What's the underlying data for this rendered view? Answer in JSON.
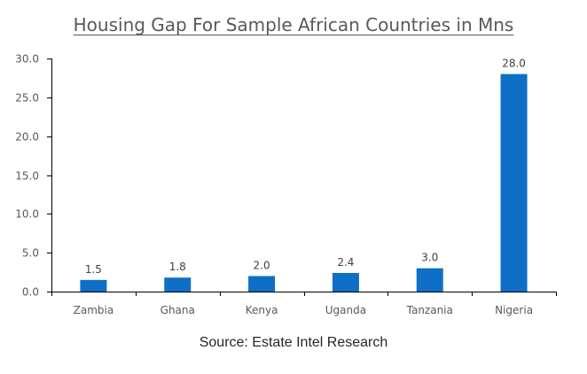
{
  "title": "Housing Gap For Sample African Countries in Mns",
  "source": "Source: Estate Intel Research",
  "colors": {
    "bar": "#0f6fc6",
    "axis": "#000000",
    "text": "#595959"
  },
  "chart_data": {
    "type": "bar",
    "title": "Housing Gap For Sample African Countries in Mns",
    "xlabel": "",
    "ylabel": "",
    "categories": [
      "Zambia",
      "Ghana",
      "Kenya",
      "Uganda",
      "Tanzania",
      "Nigeria"
    ],
    "values": [
      1.5,
      1.8,
      2.0,
      2.4,
      3.0,
      28.0
    ],
    "data_labels": [
      "1.5",
      "1.8",
      "2.0",
      "2.4",
      "3.0",
      "28.0"
    ],
    "ylim": [
      0,
      30
    ],
    "yticks": [
      "0.0",
      "5.0",
      "10.0",
      "15.0",
      "20.0",
      "25.0",
      "30.0"
    ],
    "grid": false,
    "legend": "none"
  }
}
